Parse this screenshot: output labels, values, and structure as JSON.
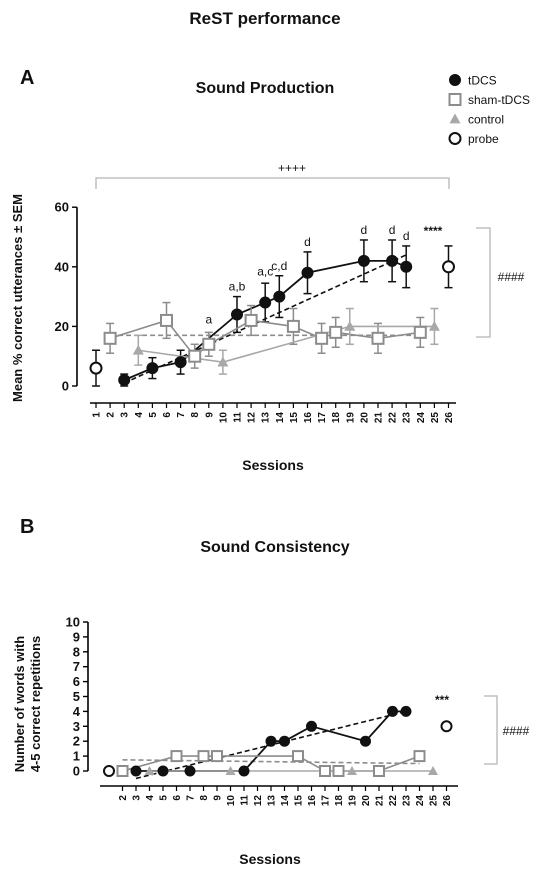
{
  "figure_title": "ReST performance",
  "legend": {
    "items": [
      {
        "label": "tDCS",
        "marker": "filled-circle",
        "color": "#111111"
      },
      {
        "label": "sham-tDCS",
        "marker": "open-square",
        "color": "#8c8c8c"
      },
      {
        "label": "control",
        "marker": "filled-triangle",
        "color": "#a8a8a8"
      },
      {
        "label": "probe",
        "marker": "open-circle",
        "color": "#111111"
      }
    ]
  },
  "chart_data": [
    {
      "panel_label": "A",
      "type": "line",
      "title": "Sound Production",
      "xlabel": "Sessions",
      "ylabel": "Mean % correct utterances ± SEM",
      "xlim": [
        1,
        26
      ],
      "ylim": [
        0,
        60
      ],
      "xticks": [
        1,
        2,
        3,
        4,
        5,
        6,
        7,
        8,
        9,
        10,
        11,
        12,
        13,
        14,
        15,
        16,
        17,
        18,
        19,
        20,
        21,
        22,
        23,
        24,
        25,
        26
      ],
      "yticks": [
        0,
        20,
        40,
        60
      ],
      "series": [
        {
          "name": "tDCS",
          "marker": "filled-circle",
          "color": "#111111",
          "points": [
            {
              "x": 3,
              "y": 2,
              "err": 2
            },
            {
              "x": 5,
              "y": 6,
              "err": 3.5
            },
            {
              "x": 7,
              "y": 8,
              "err": 4
            },
            {
              "x": 11,
              "y": 24,
              "err": 6
            },
            {
              "x": 13,
              "y": 28,
              "err": 6.5
            },
            {
              "x": 14,
              "y": 30,
              "err": 7
            },
            {
              "x": 16,
              "y": 38,
              "err": 7
            },
            {
              "x": 20,
              "y": 42,
              "err": 7
            },
            {
              "x": 22,
              "y": 42,
              "err": 7
            },
            {
              "x": 23,
              "y": 40,
              "err": 7
            }
          ]
        },
        {
          "name": "sham-tDCS",
          "marker": "open-square",
          "color": "#8c8c8c",
          "points": [
            {
              "x": 2,
              "y": 16,
              "err": 5
            },
            {
              "x": 6,
              "y": 22,
              "err": 6
            },
            {
              "x": 8,
              "y": 10,
              "err": 4
            },
            {
              "x": 9,
              "y": 14,
              "err": 4
            },
            {
              "x": 12,
              "y": 22,
              "err": 5
            },
            {
              "x": 15,
              "y": 20,
              "err": 6
            },
            {
              "x": 17,
              "y": 16,
              "err": 5
            },
            {
              "x": 18,
              "y": 18,
              "err": 5
            },
            {
              "x": 21,
              "y": 16,
              "err": 5
            },
            {
              "x": 24,
              "y": 18,
              "err": 5
            }
          ]
        },
        {
          "name": "control",
          "marker": "filled-triangle",
          "color": "#a8a8a8",
          "points": [
            {
              "x": 4,
              "y": 12,
              "err": 5
            },
            {
              "x": 10,
              "y": 8,
              "err": 4
            },
            {
              "x": 19,
              "y": 20,
              "err": 6
            },
            {
              "x": 25,
              "y": 20,
              "err": 6
            }
          ]
        },
        {
          "name": "probe",
          "marker": "open-circle",
          "color": "#111111",
          "points": [
            {
              "x": 1,
              "y": 6,
              "err": 6
            },
            {
              "x": 26,
              "y": 40,
              "err": 7
            }
          ]
        }
      ],
      "trendlines": [
        {
          "series": "tDCS",
          "from": [
            3,
            1
          ],
          "to": [
            23,
            44
          ],
          "color": "#111111"
        },
        {
          "series": "sham-tDCS",
          "from": [
            2,
            17
          ],
          "to": [
            24,
            17
          ],
          "color": "#8c8c8c"
        }
      ],
      "annotations": [
        {
          "text": "a",
          "x": 9,
          "y": 21
        },
        {
          "text": "a,b",
          "x": 11,
          "y": 32
        },
        {
          "text": "a,c",
          "x": 13,
          "y": 37
        },
        {
          "text": "c,d",
          "x": 14,
          "y": 39
        },
        {
          "text": "d",
          "x": 16,
          "y": 47
        },
        {
          "text": "d",
          "x": 20,
          "y": 51
        },
        {
          "text": "d",
          "x": 22,
          "y": 51
        },
        {
          "text": "d",
          "x": 23,
          "y": 49
        }
      ],
      "significance": {
        "top_bracket_label": "++++",
        "stars_label": "****",
        "side_bracket_label": "####"
      }
    },
    {
      "panel_label": "B",
      "type": "line",
      "title": "Sound Consistency",
      "xlabel": "Sessions",
      "ylabel_lines": [
        "Number of words with",
        "4-5 correct repetitions"
      ],
      "xlim": [
        1,
        26
      ],
      "ylim": [
        0,
        10
      ],
      "xticks": [
        2,
        3,
        4,
        5,
        6,
        7,
        8,
        9,
        10,
        11,
        12,
        13,
        14,
        15,
        16,
        17,
        18,
        19,
        20,
        21,
        22,
        23,
        24,
        25,
        26
      ],
      "yticks": [
        0,
        1,
        2,
        3,
        4,
        5,
        6,
        7,
        8,
        9,
        10
      ],
      "series": [
        {
          "name": "tDCS",
          "marker": "filled-circle",
          "color": "#111111",
          "points": [
            {
              "x": 3,
              "y": 0
            },
            {
              "x": 5,
              "y": 0
            },
            {
              "x": 7,
              "y": 0
            },
            {
              "x": 11,
              "y": 0
            },
            {
              "x": 13,
              "y": 2
            },
            {
              "x": 14,
              "y": 2
            },
            {
              "x": 16,
              "y": 3
            },
            {
              "x": 20,
              "y": 2
            },
            {
              "x": 22,
              "y": 4
            },
            {
              "x": 23,
              "y": 4
            }
          ]
        },
        {
          "name": "sham-tDCS",
          "marker": "open-square",
          "color": "#8c8c8c",
          "points": [
            {
              "x": 2,
              "y": 0
            },
            {
              "x": 6,
              "y": 1
            },
            {
              "x": 8,
              "y": 1
            },
            {
              "x": 9,
              "y": 1
            },
            {
              "x": 15,
              "y": 1
            },
            {
              "x": 17,
              "y": 0
            },
            {
              "x": 18,
              "y": 0
            },
            {
              "x": 21,
              "y": 0
            },
            {
              "x": 24,
              "y": 1
            }
          ]
        },
        {
          "name": "control",
          "marker": "filled-triangle",
          "color": "#a8a8a8",
          "points": [
            {
              "x": 4,
              "y": 0
            },
            {
              "x": 10,
              "y": 0
            },
            {
              "x": 19,
              "y": 0
            },
            {
              "x": 25,
              "y": 0
            }
          ]
        },
        {
          "name": "probe",
          "marker": "open-circle",
          "color": "#111111",
          "points": [
            {
              "x": 1,
              "y": 0
            },
            {
              "x": 26,
              "y": 3
            }
          ]
        }
      ],
      "trendlines": [
        {
          "series": "tDCS",
          "from": [
            3,
            -0.5
          ],
          "to": [
            23,
            4
          ],
          "color": "#111111"
        },
        {
          "series": "sham-tDCS",
          "from": [
            2,
            0.75
          ],
          "to": [
            24,
            0.5
          ],
          "color": "#8c8c8c"
        }
      ],
      "significance": {
        "stars_label": "***",
        "side_bracket_label": "####"
      }
    }
  ]
}
